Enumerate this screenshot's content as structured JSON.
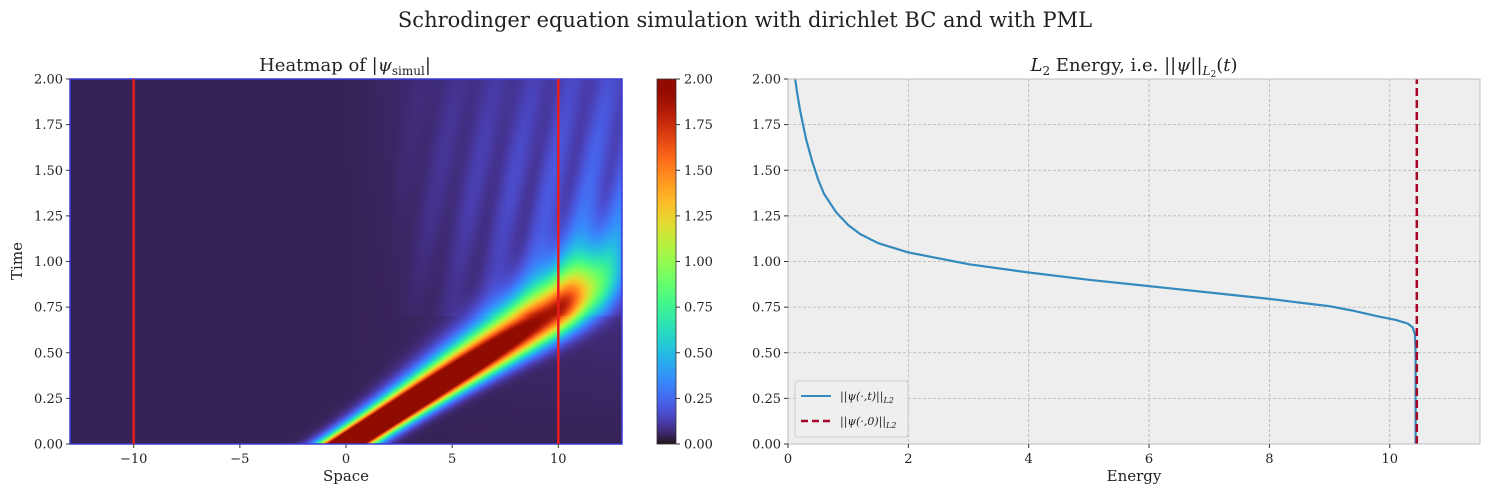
{
  "suptitle": "Schrodinger equation simulation with dirichlet BC and with PML",
  "chart_data": [
    {
      "type": "heatmap",
      "title": "Heatmap of |ψsimul|",
      "xlabel": "Space",
      "ylabel": "Time",
      "xlim": [
        -13,
        13
      ],
      "ylim": [
        0,
        2
      ],
      "xticks": [
        -10,
        -5,
        0,
        5,
        10
      ],
      "yticks": [
        0.0,
        0.25,
        0.5,
        0.75,
        1.0,
        1.25,
        1.5,
        1.75,
        2.0
      ],
      "colormap": "turbo",
      "clim": [
        0,
        2
      ],
      "colorbar_ticks": [
        0.0,
        0.25,
        0.5,
        0.75,
        1.0,
        1.25,
        1.5,
        1.75,
        2.0
      ],
      "vlines": [
        {
          "x": -10,
          "color": "#e81c1c"
        },
        {
          "x": 10,
          "color": "#e81c1c"
        }
      ],
      "wave_packet": {
        "x0": 0,
        "velocity": 13.3,
        "peak": 2.0,
        "sigma0": 0.75,
        "spread": 1.9
      }
    },
    {
      "type": "line",
      "title": "L2 Energy, i.e. ||ψ||L2(t)",
      "xlabel": "Energy",
      "ylabel": "",
      "xlim": [
        0,
        11.5
      ],
      "ylim": [
        0,
        2
      ],
      "xticks": [
        0,
        2,
        4,
        6,
        8,
        10
      ],
      "yticks": [
        0.0,
        0.25,
        0.5,
        0.75,
        1.0,
        1.25,
        1.5,
        1.75,
        2.0
      ],
      "grid": true,
      "legend": "lower-left",
      "series": [
        {
          "name": "||ψ(·,t)||L2",
          "color": "#348abd",
          "style": "solid",
          "x": [
            10.43,
            10.43,
            10.42,
            10.38,
            10.3,
            10.1,
            9.8,
            9.4,
            9.0,
            8.5,
            8.0,
            7.0,
            6.0,
            5.0,
            4.0,
            3.0,
            2.0,
            1.5,
            1.2,
            1.0,
            0.8,
            0.6,
            0.5,
            0.4,
            0.3,
            0.2,
            0.15,
            0.12
          ],
          "y": [
            0.0,
            0.5,
            0.6,
            0.64,
            0.66,
            0.68,
            0.7,
            0.73,
            0.755,
            0.775,
            0.795,
            0.83,
            0.865,
            0.9,
            0.94,
            0.985,
            1.05,
            1.1,
            1.15,
            1.2,
            1.27,
            1.37,
            1.45,
            1.55,
            1.67,
            1.83,
            1.93,
            2.0
          ]
        },
        {
          "name": "||ψ(·,0)||L2",
          "color": "#a60628",
          "style": "dashed",
          "x": [
            10.45,
            10.45
          ],
          "y": [
            0,
            2
          ]
        }
      ]
    }
  ]
}
